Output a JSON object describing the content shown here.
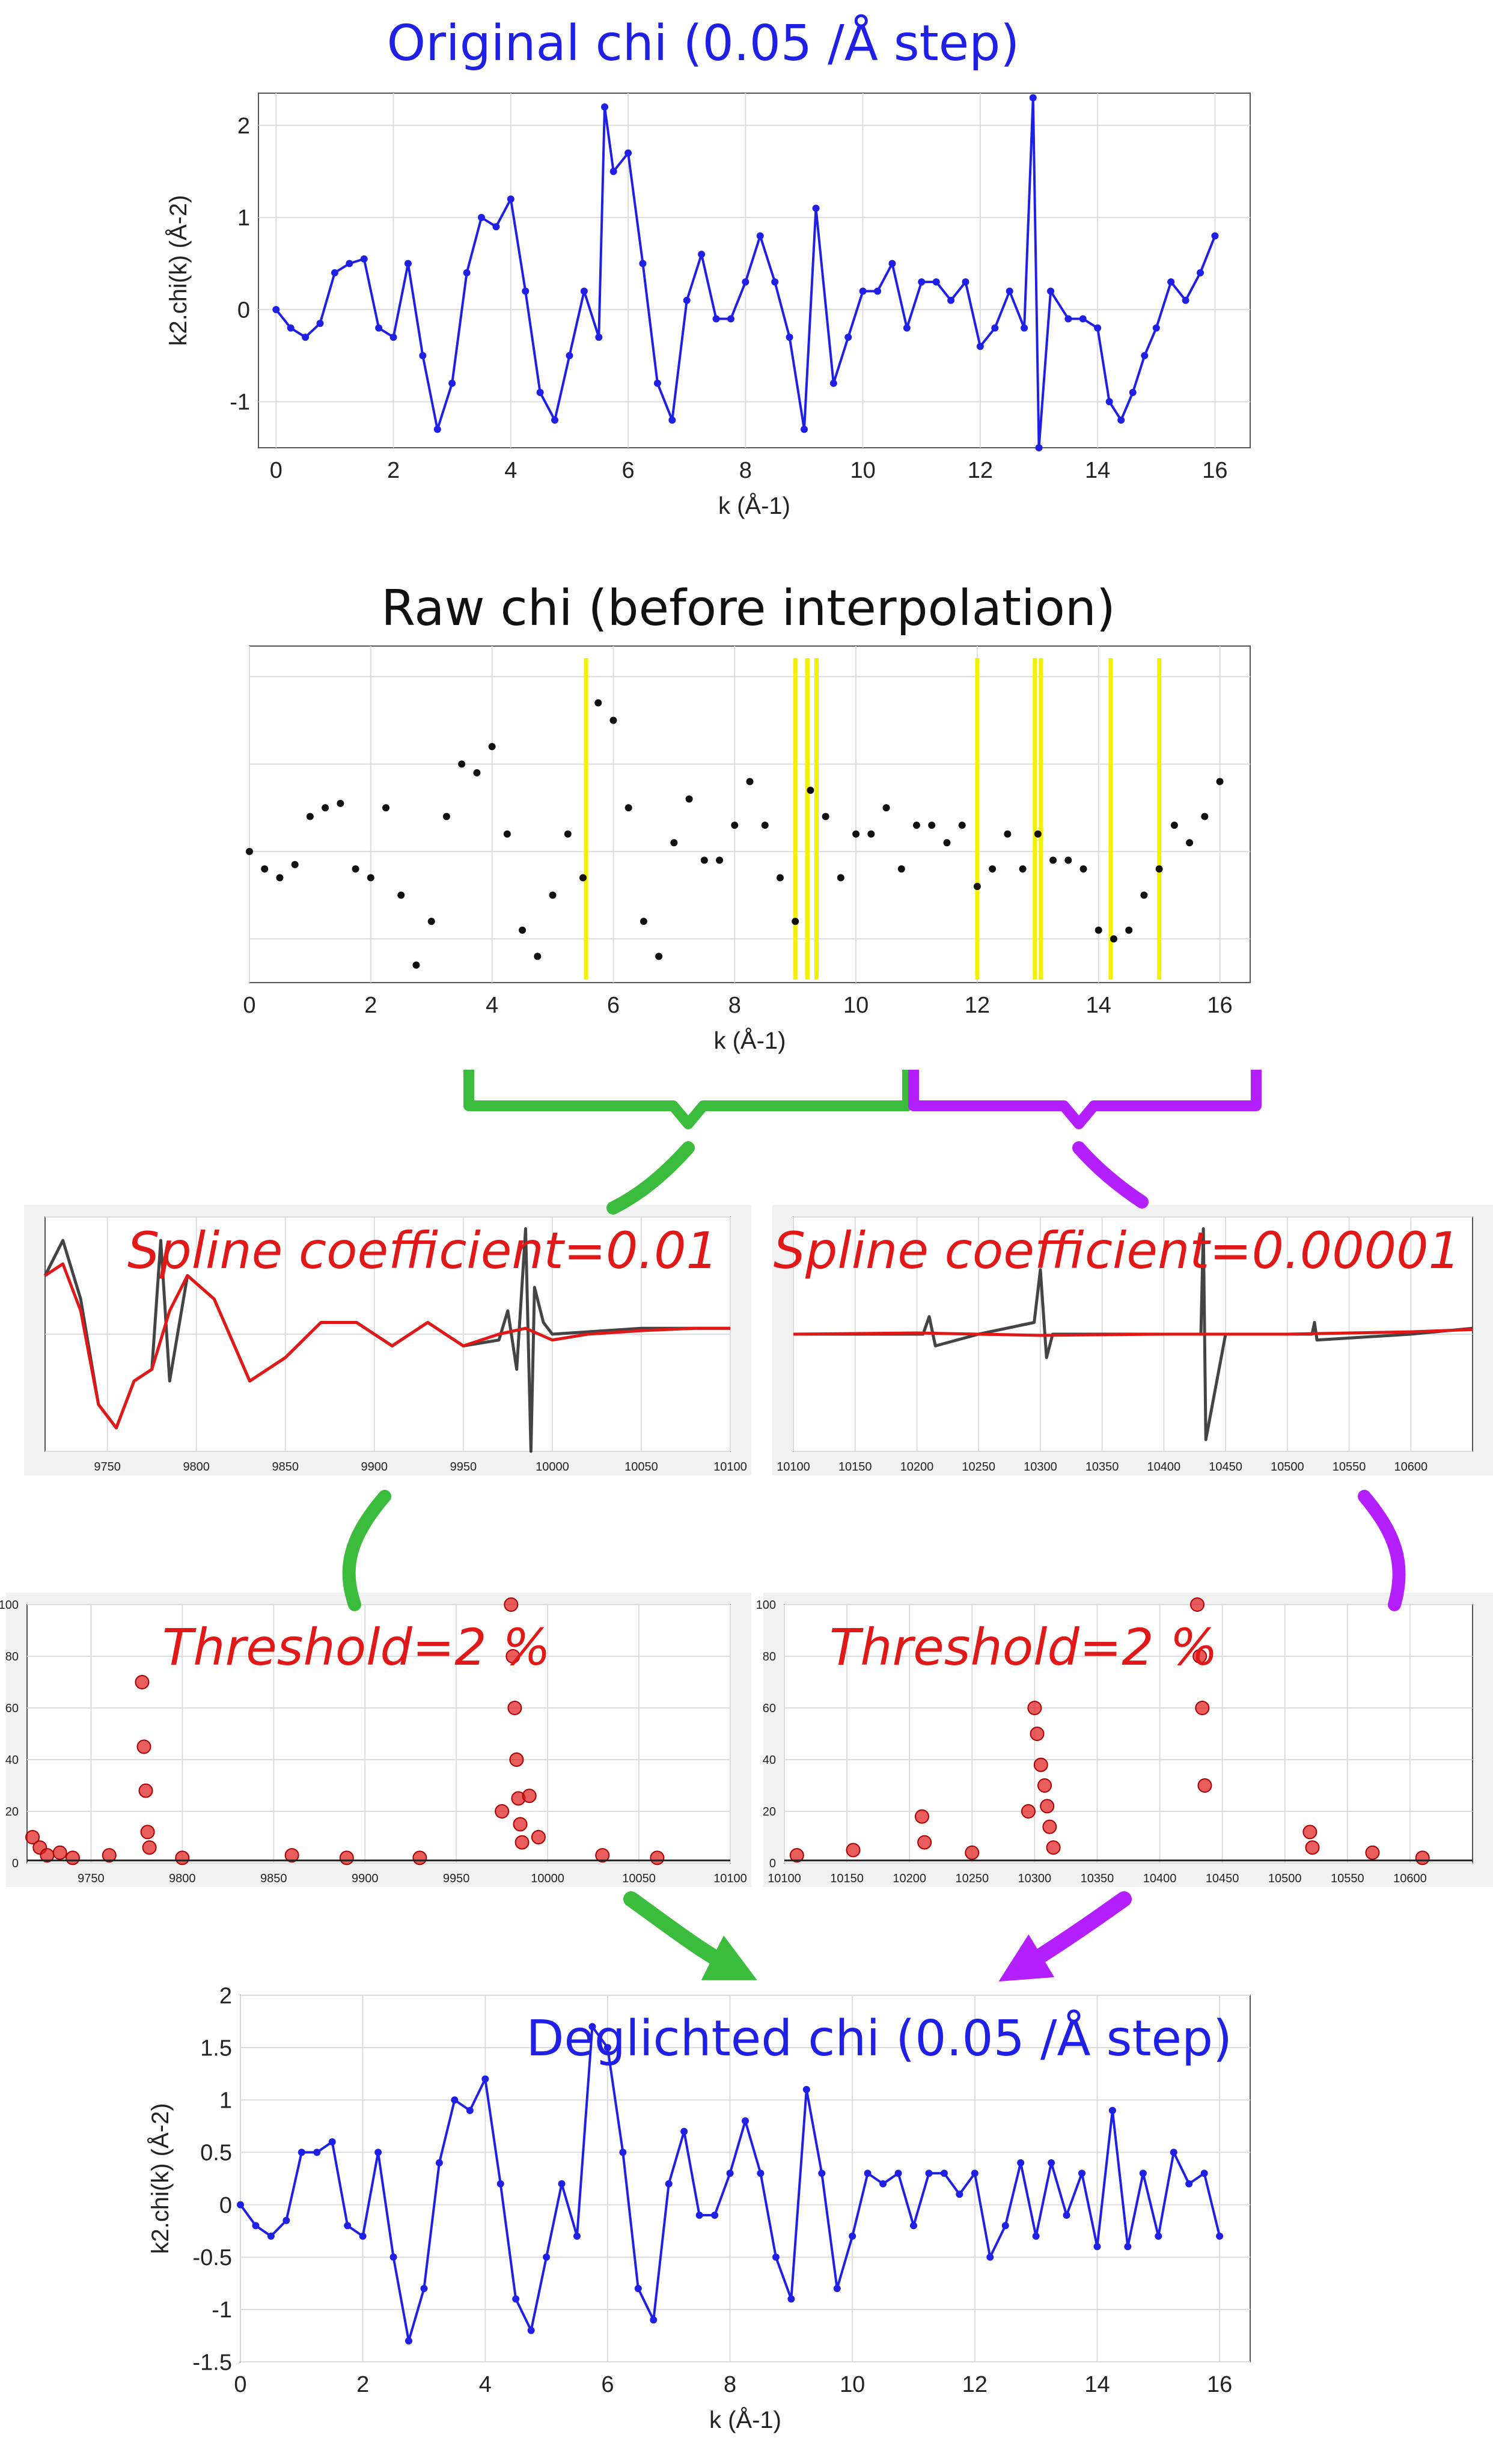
{
  "colors": {
    "blue": "#1f1fe6",
    "black": "#111111",
    "yellow": "#f2f200",
    "red": "#e01818",
    "green": "#3cbc3c",
    "purple": "#b31fff",
    "grid": "#d8d8d8",
    "panel_bg": "#f1f1f1"
  },
  "annotations": {
    "spline_left": "Spline coefficient=0.01",
    "spline_right": "Spline coefficient=0.00001",
    "threshold_left": "Threshold=2 %",
    "threshold_right": "Threshold=2 %",
    "icons": [
      "green-bracket-icon",
      "purple-bracket-icon",
      "green-arrow-icon",
      "purple-arrow-icon"
    ]
  },
  "chart_data": [
    {
      "id": "original",
      "type": "line",
      "title": "Original chi (0.05 /Å step)",
      "xlabel": "k (Å-1)",
      "ylabel": "k2.chi(k) (Å-2)",
      "xlim": [
        -0.3,
        16.6
      ],
      "ylim": [
        -1.5,
        2.35
      ],
      "xticks": [
        "0",
        "2",
        "4",
        "6",
        "8",
        "10",
        "12",
        "14",
        "16"
      ],
      "yticks": [
        "-1",
        "0",
        "1",
        "2"
      ],
      "grid": true,
      "series": [
        {
          "color": "#1f1fe6",
          "x": [
            0,
            0.25,
            0.5,
            0.75,
            1.0,
            1.25,
            1.5,
            1.75,
            2.0,
            2.25,
            2.5,
            2.75,
            3.0,
            3.25,
            3.5,
            3.75,
            4.0,
            4.25,
            4.5,
            4.75,
            5.0,
            5.25,
            5.5,
            5.6,
            5.75,
            6.0,
            6.25,
            6.5,
            6.75,
            7.0,
            7.25,
            7.5,
            7.75,
            8.0,
            8.25,
            8.5,
            8.75,
            9.0,
            9.2,
            9.5,
            9.75,
            10.0,
            10.25,
            10.5,
            10.75,
            11.0,
            11.25,
            11.5,
            11.75,
            12.0,
            12.25,
            12.5,
            12.75,
            12.9,
            13.0,
            13.2,
            13.5,
            13.75,
            14.0,
            14.2,
            14.4,
            14.6,
            14.8,
            15.0,
            15.25,
            15.5,
            15.75,
            16.0
          ],
          "y": [
            0,
            -0.2,
            -0.3,
            -0.15,
            0.4,
            0.5,
            0.55,
            -0.2,
            -0.3,
            0.5,
            -0.5,
            -1.3,
            -0.8,
            0.4,
            1.0,
            0.9,
            1.2,
            0.2,
            -0.9,
            -1.2,
            -0.5,
            0.2,
            -0.3,
            2.2,
            1.5,
            1.7,
            0.5,
            -0.8,
            -1.2,
            0.1,
            0.6,
            -0.1,
            -0.1,
            0.3,
            0.8,
            0.3,
            -0.3,
            -1.3,
            1.1,
            -0.8,
            -0.3,
            0.2,
            0.2,
            0.5,
            -0.2,
            0.3,
            0.3,
            0.1,
            0.3,
            -0.4,
            -0.2,
            0.2,
            -0.2,
            2.3,
            -1.5,
            0.2,
            -0.1,
            -0.1,
            -0.2,
            -1.0,
            -1.2,
            -0.9,
            -0.5,
            -0.2,
            0.3,
            0.1,
            0.4,
            0.8
          ]
        }
      ]
    },
    {
      "id": "raw",
      "type": "scatter",
      "title": "Raw chi (before interpolation)",
      "xlabel": "k (Å-1)",
      "xlim": [
        0,
        16.5
      ],
      "ylim": [
        -1.5,
        2.35
      ],
      "xticks": [
        "0",
        "2",
        "4",
        "6",
        "8",
        "10",
        "12",
        "14",
        "16"
      ],
      "grid": true,
      "glitch_k": [
        5.55,
        9.0,
        9.2,
        9.35,
        12.0,
        12.95,
        13.05,
        14.2,
        15.0
      ],
      "series": [
        {
          "color": "#111111",
          "x": [
            0,
            0.25,
            0.5,
            0.75,
            1.0,
            1.25,
            1.5,
            1.75,
            2.0,
            2.25,
            2.5,
            2.75,
            3.0,
            3.25,
            3.5,
            3.75,
            4.0,
            4.25,
            4.5,
            4.75,
            5.0,
            5.25,
            5.5,
            5.75,
            6.0,
            6.25,
            6.5,
            6.75,
            7.0,
            7.25,
            7.5,
            7.75,
            8.0,
            8.25,
            8.5,
            8.75,
            9.0,
            9.25,
            9.5,
            9.75,
            10.0,
            10.25,
            10.5,
            10.75,
            11.0,
            11.25,
            11.5,
            11.75,
            12.0,
            12.25,
            12.5,
            12.75,
            13.0,
            13.25,
            13.5,
            13.75,
            14.0,
            14.25,
            14.5,
            14.75,
            15.0,
            15.25,
            15.5,
            15.75,
            16.0
          ],
          "y": [
            0,
            -0.2,
            -0.3,
            -0.15,
            0.4,
            0.5,
            0.55,
            -0.2,
            -0.3,
            0.5,
            -0.5,
            -1.3,
            -0.8,
            0.4,
            1.0,
            0.9,
            1.2,
            0.2,
            -0.9,
            -1.2,
            -0.5,
            0.2,
            -0.3,
            1.7,
            1.5,
            0.5,
            -0.8,
            -1.2,
            0.1,
            0.6,
            -0.1,
            -0.1,
            0.3,
            0.8,
            0.3,
            -0.3,
            -0.8,
            0.7,
            0.4,
            -0.3,
            0.2,
            0.2,
            0.5,
            -0.2,
            0.3,
            0.3,
            0.1,
            0.3,
            -0.4,
            -0.2,
            0.2,
            -0.2,
            0.2,
            -0.1,
            -0.1,
            -0.2,
            -0.9,
            -1.0,
            -0.9,
            -0.5,
            -0.2,
            0.3,
            0.1,
            0.4,
            0.8
          ]
        }
      ]
    },
    {
      "id": "spline-left",
      "type": "line",
      "xlim": [
        9715,
        10100
      ],
      "ylim": [
        -1,
        1
      ],
      "xticks": [
        "9750",
        "9800",
        "9850",
        "9900",
        "9950",
        "10000",
        "10050",
        "10100"
      ],
      "grid": true,
      "series": [
        {
          "name": "data",
          "color": "#444444",
          "x": [
            9715,
            9725,
            9735,
            9745,
            9755,
            9765,
            9775,
            9780,
            9785,
            9795,
            9810,
            9830,
            9850,
            9870,
            9890,
            9910,
            9930,
            9950,
            9970,
            9975,
            9980,
            9985,
            9988,
            9990,
            9995,
            10000,
            10020,
            10050,
            10080,
            10100
          ],
          "y": [
            0.5,
            0.8,
            0.3,
            -0.6,
            -0.8,
            -0.4,
            -0.3,
            0.8,
            -0.4,
            0.5,
            0.3,
            -0.4,
            -0.2,
            0.1,
            0.1,
            -0.1,
            0.1,
            -0.1,
            -0.05,
            0.2,
            -0.3,
            0.9,
            -1.2,
            0.4,
            0.1,
            0.0,
            0.02,
            0.05,
            0.05,
            0.05
          ]
        },
        {
          "name": "spline",
          "color": "#e01818",
          "x": [
            9715,
            9725,
            9735,
            9745,
            9755,
            9765,
            9775,
            9785,
            9795,
            9810,
            9830,
            9850,
            9870,
            9890,
            9910,
            9930,
            9950,
            9970,
            9985,
            10000,
            10020,
            10050,
            10080,
            10100
          ],
          "y": [
            0.5,
            0.6,
            0.2,
            -0.6,
            -0.8,
            -0.4,
            -0.3,
            0.2,
            0.5,
            0.3,
            -0.4,
            -0.2,
            0.1,
            0.1,
            -0.1,
            0.1,
            -0.1,
            0.0,
            0.05,
            -0.05,
            0.0,
            0.03,
            0.05,
            0.05
          ]
        }
      ]
    },
    {
      "id": "spline-right",
      "type": "line",
      "xlim": [
        10100,
        10650
      ],
      "ylim": [
        -1,
        1
      ],
      "xticks": [
        "10100",
        "10150",
        "10200",
        "10250",
        "10300",
        "10350",
        "10400",
        "10450",
        "10500",
        "10550",
        "10600"
      ],
      "grid": true,
      "series": [
        {
          "name": "data",
          "color": "#444444",
          "x": [
            10100,
            10150,
            10205,
            10210,
            10215,
            10250,
            10295,
            10300,
            10305,
            10310,
            10350,
            10430,
            10432,
            10434,
            10450,
            10520,
            10522,
            10524,
            10600,
            10650
          ],
          "y": [
            0,
            0,
            0,
            0.15,
            -0.1,
            0,
            0.1,
            0.55,
            -0.2,
            0.0,
            0,
            0,
            0.9,
            -0.9,
            0,
            0,
            0.1,
            -0.05,
            0.0,
            0.05
          ]
        },
        {
          "name": "spline",
          "color": "#e01818",
          "x": [
            10100,
            10200,
            10300,
            10400,
            10500,
            10600,
            10650
          ],
          "y": [
            0,
            0.01,
            -0.01,
            0.0,
            0.0,
            0.02,
            0.04
          ]
        }
      ]
    },
    {
      "id": "threshold-left",
      "type": "scatter",
      "xlim": [
        9715,
        10100
      ],
      "ylim": [
        0,
        100
      ],
      "xticks": [
        "9750",
        "9800",
        "9850",
        "9900",
        "9950",
        "10000",
        "10050",
        "10100"
      ],
      "yticks": [
        "0",
        "20",
        "40",
        "60",
        "80",
        "100"
      ],
      "grid": true,
      "series": [
        {
          "color": "#e01818",
          "x": [
            9718,
            9722,
            9726,
            9733,
            9740,
            9760,
            9778,
            9779,
            9780,
            9781,
            9782,
            9800,
            9860,
            9890,
            9930,
            9975,
            9980,
            9981,
            9982,
            9983,
            9984,
            9985,
            9986,
            9990,
            9995,
            10030,
            10060
          ],
          "y": [
            10,
            6,
            3,
            4,
            2,
            3,
            70,
            45,
            28,
            12,
            6,
            2,
            3,
            2,
            2,
            20,
            100,
            80,
            60,
            40,
            25,
            15,
            8,
            26,
            10,
            3,
            2
          ]
        }
      ]
    },
    {
      "id": "threshold-right",
      "type": "scatter",
      "xlim": [
        10100,
        10650
      ],
      "ylim": [
        0,
        100
      ],
      "xticks": [
        "10100",
        "10150",
        "10200",
        "10250",
        "10300",
        "10350",
        "10400",
        "10450",
        "10500",
        "10550",
        "10600"
      ],
      "yticks": [
        "0",
        "20",
        "40",
        "60",
        "80",
        "100"
      ],
      "grid": true,
      "series": [
        {
          "color": "#e01818",
          "x": [
            10110,
            10155,
            10210,
            10212,
            10250,
            10295,
            10300,
            10302,
            10305,
            10308,
            10310,
            10312,
            10315,
            10430,
            10432,
            10434,
            10436,
            10520,
            10522,
            10570,
            10610
          ],
          "y": [
            3,
            5,
            18,
            8,
            4,
            20,
            60,
            50,
            38,
            30,
            22,
            14,
            6,
            100,
            80,
            60,
            30,
            12,
            6,
            4,
            2
          ]
        }
      ]
    },
    {
      "id": "deglitched",
      "type": "line",
      "title": "Deglichted chi (0.05 /Å step)",
      "xlabel": "k (Å-1)",
      "ylabel": "k2.chi(k) (Å-2)",
      "xlim": [
        0,
        16.5
      ],
      "ylim": [
        -1.5,
        2.0
      ],
      "xticks": [
        "0",
        "2",
        "4",
        "6",
        "8",
        "10",
        "12",
        "14",
        "16"
      ],
      "yticks": [
        "-1.5",
        "-1",
        "-0.5",
        "0",
        "0.5",
        "1",
        "1.5",
        "2"
      ],
      "grid": true,
      "series": [
        {
          "color": "#1f1fe6",
          "x": [
            0,
            0.25,
            0.5,
            0.75,
            1.0,
            1.25,
            1.5,
            1.75,
            2.0,
            2.25,
            2.5,
            2.75,
            3.0,
            3.25,
            3.5,
            3.75,
            4.0,
            4.25,
            4.5,
            4.75,
            5.0,
            5.25,
            5.5,
            5.75,
            6.0,
            6.25,
            6.5,
            6.75,
            7.0,
            7.25,
            7.5,
            7.75,
            8.0,
            8.25,
            8.5,
            8.75,
            9.0,
            9.25,
            9.5,
            9.75,
            10.0,
            10.25,
            10.5,
            10.75,
            11.0,
            11.25,
            11.5,
            11.75,
            12.0,
            12.25,
            12.5,
            12.75,
            13.0,
            13.25,
            13.5,
            13.75,
            14.0,
            14.25,
            14.5,
            14.75,
            15.0,
            15.25,
            15.5,
            15.75,
            16.0
          ],
          "y": [
            0,
            -0.2,
            -0.3,
            -0.15,
            0.5,
            0.5,
            0.6,
            -0.2,
            -0.3,
            0.5,
            -0.5,
            -1.3,
            -0.8,
            0.4,
            1.0,
            0.9,
            1.2,
            0.2,
            -0.9,
            -1.2,
            -0.5,
            0.2,
            -0.3,
            1.7,
            1.5,
            0.5,
            -0.8,
            -1.1,
            0.2,
            0.7,
            -0.1,
            -0.1,
            0.3,
            0.8,
            0.3,
            -0.5,
            -0.9,
            1.1,
            0.3,
            -0.8,
            -0.3,
            0.3,
            0.2,
            0.3,
            -0.2,
            0.3,
            0.3,
            0.1,
            0.3,
            -0.5,
            -0.2,
            0.4,
            -0.3,
            0.4,
            -0.1,
            0.3,
            -0.4,
            0.9,
            -0.4,
            0.3,
            -0.3,
            0.5,
            0.2,
            0.3,
            -0.3
          ]
        }
      ]
    }
  ]
}
